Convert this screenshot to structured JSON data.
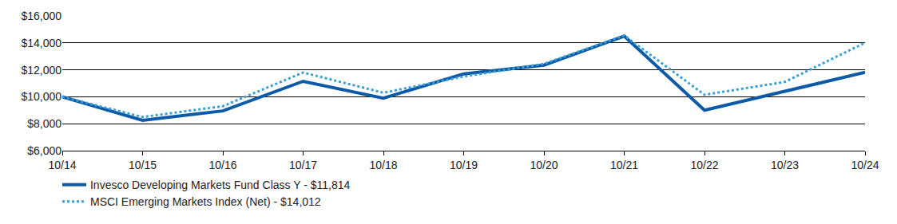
{
  "chart_data": {
    "type": "line",
    "categories": [
      "10/14",
      "10/15",
      "10/16",
      "10/17",
      "10/18",
      "10/19",
      "10/20",
      "10/21",
      "10/22",
      "10/23",
      "10/24"
    ],
    "series": [
      {
        "name": "Invesco Developing Markets Fund Class Y - $11,814",
        "color": "#0d5aa7",
        "line_style": "solid",
        "values": [
          10000,
          8250,
          8950,
          11150,
          9900,
          11700,
          12350,
          14500,
          9000,
          10400,
          11814
        ]
      },
      {
        "name": "MSCI Emerging Markets Index (Net) - $14,012",
        "color": "#3a9fd9",
        "line_style": "dot",
        "values": [
          10000,
          8500,
          9300,
          11800,
          10300,
          11500,
          12450,
          14550,
          10150,
          11100,
          14012
        ]
      }
    ],
    "ylim": [
      6000,
      16000
    ],
    "yticks": [
      {
        "value": 6000,
        "label": "$6,000"
      },
      {
        "value": 8000,
        "label": "$8,000"
      },
      {
        "value": 10000,
        "label": "$10,000"
      },
      {
        "value": 12000,
        "label": "$12,000"
      },
      {
        "value": 14000,
        "label": "$14,000"
      },
      {
        "value": 16000,
        "label": "$16,000"
      }
    ],
    "grid": true,
    "legend": "bottom"
  }
}
